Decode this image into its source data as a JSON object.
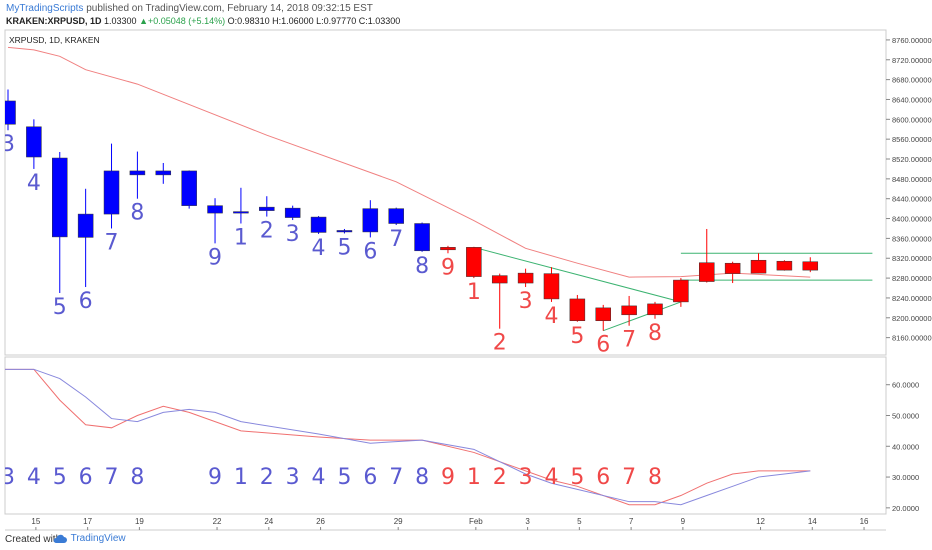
{
  "header": {
    "brand": "MyTradingScripts",
    "published": "published on TradingView.com, February 14, 2018 09:32:15 EST",
    "symbol_line_prefix": "KRAKEN:XRPUSD, 1D",
    "last": "1.03300",
    "change": "+0.05048 (+5.14%)",
    "ohlc": "O:0.98310 H:1.06000 L:0.97770 C:1.03300"
  },
  "pane_label": "XRPUSD, 1D, KRAKEN",
  "footer": {
    "created_with": "Created with",
    "logo_text": "TradingView"
  },
  "colors": {
    "up_candle": "#ff0000",
    "down_candle": "#0000ff",
    "ma_line": "#f08080",
    "trend_lines": "#3cb371",
    "count_red": "#f04848",
    "count_blue": "#5a5ad0",
    "osc_red": "#f07070",
    "osc_blue": "#8888dd",
    "axis_text": "#444444",
    "grid": "#f0f0f0"
  },
  "chart_data": {
    "type": "candlestick",
    "price_axis_ticks": [
      "8760.00000",
      "8720.00000",
      "8680.00000",
      "8640.00000",
      "8600.00000",
      "8560.00000",
      "8520.00000",
      "8480.00000",
      "8440.00000",
      "8400.00000",
      "8360.00000",
      "8320.00000",
      "8280.00000",
      "8240.00000",
      "8200.00000",
      "8160.00000"
    ],
    "price_range": [
      8125,
      8780
    ],
    "osc_axis_ticks": [
      "60.0000",
      "50.0000",
      "40.0000",
      "30.0000",
      "20.0000"
    ],
    "osc_range": [
      18,
      69
    ],
    "x_labels": [
      {
        "label": "15",
        "idx": 1
      },
      {
        "label": "17",
        "idx": 3
      },
      {
        "label": "19",
        "idx": 5
      },
      {
        "label": "22",
        "idx": 8
      },
      {
        "label": "24",
        "idx": 10
      },
      {
        "label": "26",
        "idx": 12
      },
      {
        "label": "29",
        "idx": 15
      },
      {
        "label": "Feb",
        "idx": 18
      },
      {
        "label": "3",
        "idx": 20
      },
      {
        "label": "5",
        "idx": 22
      },
      {
        "label": "7",
        "idx": 24
      },
      {
        "label": "9",
        "idx": 26
      },
      {
        "label": "12",
        "idx": 29
      },
      {
        "label": "14",
        "idx": 31
      },
      {
        "label": "16",
        "idx": 33
      }
    ],
    "candles": [
      {
        "idx": 0,
        "o": 8637,
        "h": 8660,
        "l": 8578,
        "c": 8590,
        "color": "blue",
        "count": "3"
      },
      {
        "idx": 1,
        "o": 8585,
        "h": 8600,
        "l": 8500,
        "c": 8524,
        "color": "blue",
        "count": "4"
      },
      {
        "idx": 2,
        "o": 8522,
        "h": 8534,
        "l": 8250,
        "c": 8363,
        "color": "blue",
        "count": "5"
      },
      {
        "idx": 3,
        "o": 8409,
        "h": 8460,
        "l": 8262,
        "c": 8362,
        "color": "blue",
        "count": "6"
      },
      {
        "idx": 4,
        "o": 8496,
        "h": 8551,
        "l": 8380,
        "c": 8409,
        "color": "blue",
        "count": "7"
      },
      {
        "idx": 5,
        "o": 8496,
        "h": 8535,
        "l": 8440,
        "c": 8488,
        "color": "blue",
        "count": "8"
      },
      {
        "idx": 6,
        "o": 8496,
        "h": 8512,
        "l": 8470,
        "c": 8488,
        "color": "blue",
        "count": ""
      },
      {
        "idx": 7,
        "o": 8496,
        "h": 8497,
        "l": 8420,
        "c": 8426,
        "color": "blue",
        "count": ""
      },
      {
        "idx": 8,
        "o": 8426,
        "h": 8441,
        "l": 8350,
        "c": 8411,
        "color": "blue",
        "count": "9"
      },
      {
        "idx": 9,
        "o": 8414,
        "h": 8462,
        "l": 8390,
        "c": 8413,
        "color": "blue",
        "count": "1"
      },
      {
        "idx": 10,
        "o": 8423,
        "h": 8445,
        "l": 8404,
        "c": 8416,
        "color": "blue",
        "count": "2"
      },
      {
        "idx": 11,
        "o": 8421,
        "h": 8426,
        "l": 8397,
        "c": 8402,
        "color": "blue",
        "count": "3"
      },
      {
        "idx": 12,
        "o": 8403,
        "h": 8405,
        "l": 8369,
        "c": 8372,
        "color": "blue",
        "count": "4"
      },
      {
        "idx": 13,
        "o": 8376,
        "h": 8379,
        "l": 8370,
        "c": 8373,
        "color": "blue",
        "count": "5"
      },
      {
        "idx": 14,
        "o": 8420,
        "h": 8437,
        "l": 8362,
        "c": 8373,
        "color": "blue",
        "count": "6"
      },
      {
        "idx": 15,
        "o": 8420,
        "h": 8422,
        "l": 8387,
        "c": 8390,
        "color": "blue",
        "count": "7"
      },
      {
        "idx": 16,
        "o": 8390,
        "h": 8392,
        "l": 8333,
        "c": 8335,
        "color": "blue",
        "count": "8"
      },
      {
        "idx": 17,
        "o": 8337,
        "h": 8345,
        "l": 8330,
        "c": 8342,
        "color": "red",
        "count": "9"
      },
      {
        "idx": 18,
        "o": 8283,
        "h": 8343,
        "l": 8280,
        "c": 8342,
        "color": "red",
        "count": "1"
      },
      {
        "idx": 19,
        "o": 8270,
        "h": 8289,
        "l": 8178,
        "c": 8285,
        "color": "red",
        "count": "2"
      },
      {
        "idx": 20,
        "o": 8270,
        "h": 8299,
        "l": 8262,
        "c": 8290,
        "color": "red",
        "count": "3"
      },
      {
        "idx": 21,
        "o": 8238,
        "h": 8302,
        "l": 8232,
        "c": 8289,
        "color": "red",
        "count": "4"
      },
      {
        "idx": 22,
        "o": 8194,
        "h": 8246,
        "l": 8192,
        "c": 8238,
        "color": "red",
        "count": "5"
      },
      {
        "idx": 23,
        "o": 8194,
        "h": 8226,
        "l": 8174,
        "c": 8220,
        "color": "red",
        "count": "6"
      },
      {
        "idx": 24,
        "o": 8206,
        "h": 8244,
        "l": 8184,
        "c": 8224,
        "color": "red",
        "count": "7"
      },
      {
        "idx": 25,
        "o": 8206,
        "h": 8232,
        "l": 8198,
        "c": 8228,
        "color": "red",
        "count": "8"
      },
      {
        "idx": 26,
        "o": 8232,
        "h": 8280,
        "l": 8222,
        "c": 8276,
        "color": "red",
        "count": ""
      },
      {
        "idx": 27,
        "o": 8273,
        "h": 8379,
        "l": 8271,
        "c": 8311,
        "color": "red",
        "count": ""
      },
      {
        "idx": 28,
        "o": 8289,
        "h": 8313,
        "l": 8270,
        "c": 8310,
        "color": "red",
        "count": ""
      },
      {
        "idx": 29,
        "o": 8290,
        "h": 8330,
        "l": 8290,
        "c": 8316,
        "color": "red",
        "count": ""
      },
      {
        "idx": 30,
        "o": 8296,
        "h": 8316,
        "l": 8295,
        "c": 8314,
        "color": "red",
        "count": ""
      },
      {
        "idx": 31,
        "o": 8296,
        "h": 8322,
        "l": 8292,
        "c": 8313,
        "color": "red",
        "count": ""
      }
    ],
    "moving_average": [
      [
        0,
        8745
      ],
      [
        1,
        8740
      ],
      [
        2,
        8727
      ],
      [
        3,
        8700
      ],
      [
        5,
        8671
      ],
      [
        10,
        8568
      ],
      [
        15,
        8474
      ],
      [
        18,
        8396
      ],
      [
        20,
        8340
      ],
      [
        22,
        8310
      ],
      [
        24,
        8282
      ],
      [
        26,
        8283
      ],
      [
        28,
        8290
      ],
      [
        31,
        8282
      ]
    ],
    "trend_lines": [
      [
        [
          18,
          8342
        ],
        [
          26,
          8232
        ]
      ],
      [
        [
          23,
          8174
        ],
        [
          26,
          8232
        ]
      ],
      [
        [
          26,
          8330
        ],
        [
          33.4,
          8330
        ]
      ],
      [
        [
          26,
          8276
        ],
        [
          33.4,
          8276
        ]
      ]
    ],
    "oscillator": {
      "red": [
        [
          -1,
          65
        ],
        [
          1,
          65
        ],
        [
          2,
          55
        ],
        [
          3,
          47
        ],
        [
          4,
          46
        ],
        [
          5,
          50
        ],
        [
          6,
          53
        ],
        [
          7,
          51
        ],
        [
          9,
          45
        ],
        [
          12,
          43
        ],
        [
          14,
          42
        ],
        [
          16,
          42
        ],
        [
          18,
          38
        ],
        [
          19,
          35
        ],
        [
          21,
          29
        ],
        [
          22,
          27
        ],
        [
          24,
          21
        ],
        [
          25,
          21
        ],
        [
          26,
          24
        ],
        [
          27,
          28
        ],
        [
          28,
          31
        ],
        [
          29,
          32
        ],
        [
          30,
          32
        ],
        [
          31,
          32
        ]
      ],
      "blue": [
        [
          -1,
          65
        ],
        [
          1,
          65
        ],
        [
          2,
          62
        ],
        [
          3,
          56
        ],
        [
          4,
          49
        ],
        [
          5,
          48
        ],
        [
          6,
          51
        ],
        [
          7,
          52
        ],
        [
          8,
          51
        ],
        [
          9,
          48
        ],
        [
          12,
          44
        ],
        [
          14,
          41
        ],
        [
          16,
          42
        ],
        [
          18,
          39
        ],
        [
          19,
          35
        ],
        [
          20,
          31
        ],
        [
          21,
          28
        ],
        [
          22,
          26
        ],
        [
          24,
          22
        ],
        [
          25,
          22
        ],
        [
          26,
          21
        ],
        [
          27,
          24
        ],
        [
          28,
          27
        ],
        [
          29,
          30
        ],
        [
          30,
          31
        ],
        [
          31,
          32
        ]
      ]
    },
    "osc_counts": [
      {
        "idx": 0,
        "text": "3",
        "color": "blue"
      },
      {
        "idx": 1,
        "text": "4",
        "color": "blue"
      },
      {
        "idx": 2,
        "text": "5",
        "color": "blue"
      },
      {
        "idx": 3,
        "text": "6",
        "color": "blue"
      },
      {
        "idx": 4,
        "text": "7",
        "color": "blue"
      },
      {
        "idx": 5,
        "text": "8",
        "color": "blue"
      },
      {
        "idx": 8,
        "text": "9",
        "color": "blue"
      },
      {
        "idx": 9,
        "text": "1",
        "color": "blue"
      },
      {
        "idx": 10,
        "text": "2",
        "color": "blue"
      },
      {
        "idx": 11,
        "text": "3",
        "color": "blue"
      },
      {
        "idx": 12,
        "text": "4",
        "color": "blue"
      },
      {
        "idx": 13,
        "text": "5",
        "color": "blue"
      },
      {
        "idx": 14,
        "text": "6",
        "color": "blue"
      },
      {
        "idx": 15,
        "text": "7",
        "color": "blue"
      },
      {
        "idx": 16,
        "text": "8",
        "color": "blue"
      },
      {
        "idx": 17,
        "text": "9",
        "color": "red"
      },
      {
        "idx": 18,
        "text": "1",
        "color": "red"
      },
      {
        "idx": 19,
        "text": "2",
        "color": "red"
      },
      {
        "idx": 20,
        "text": "3",
        "color": "red"
      },
      {
        "idx": 21,
        "text": "4",
        "color": "red"
      },
      {
        "idx": 22,
        "text": "5",
        "color": "red"
      },
      {
        "idx": 23,
        "text": "6",
        "color": "red"
      },
      {
        "idx": 24,
        "text": "7",
        "color": "red"
      },
      {
        "idx": 25,
        "text": "8",
        "color": "red"
      }
    ]
  }
}
